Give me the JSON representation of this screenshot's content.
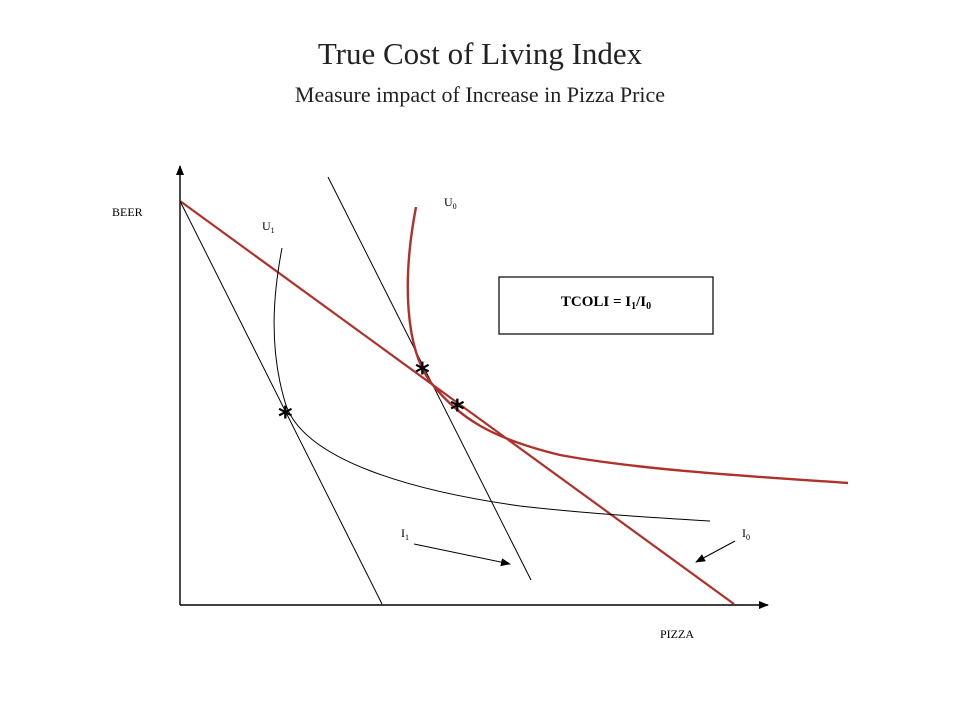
{
  "header": {
    "title": "True Cost of Living Index",
    "subtitle": "Measure impact of Increase in Pizza Price"
  },
  "axes": {
    "y_label": "BEER",
    "x_label": "PIZZA"
  },
  "curves": {
    "u0_letter": "U",
    "u0_sub": "0",
    "u1_letter": "U",
    "u1_sub": "1"
  },
  "budget_lines": {
    "i0_letter": "I",
    "i0_sub": "0",
    "i1_letter": "I",
    "i1_sub": "1"
  },
  "formula_box": {
    "prefix": "TCOLI = I",
    "num_sub": "1",
    "slash": "/I",
    "den_sub": "0"
  },
  "markers": {
    "symbol": "*"
  },
  "colors": {
    "red": "#b0302a",
    "black": "#000000"
  }
}
